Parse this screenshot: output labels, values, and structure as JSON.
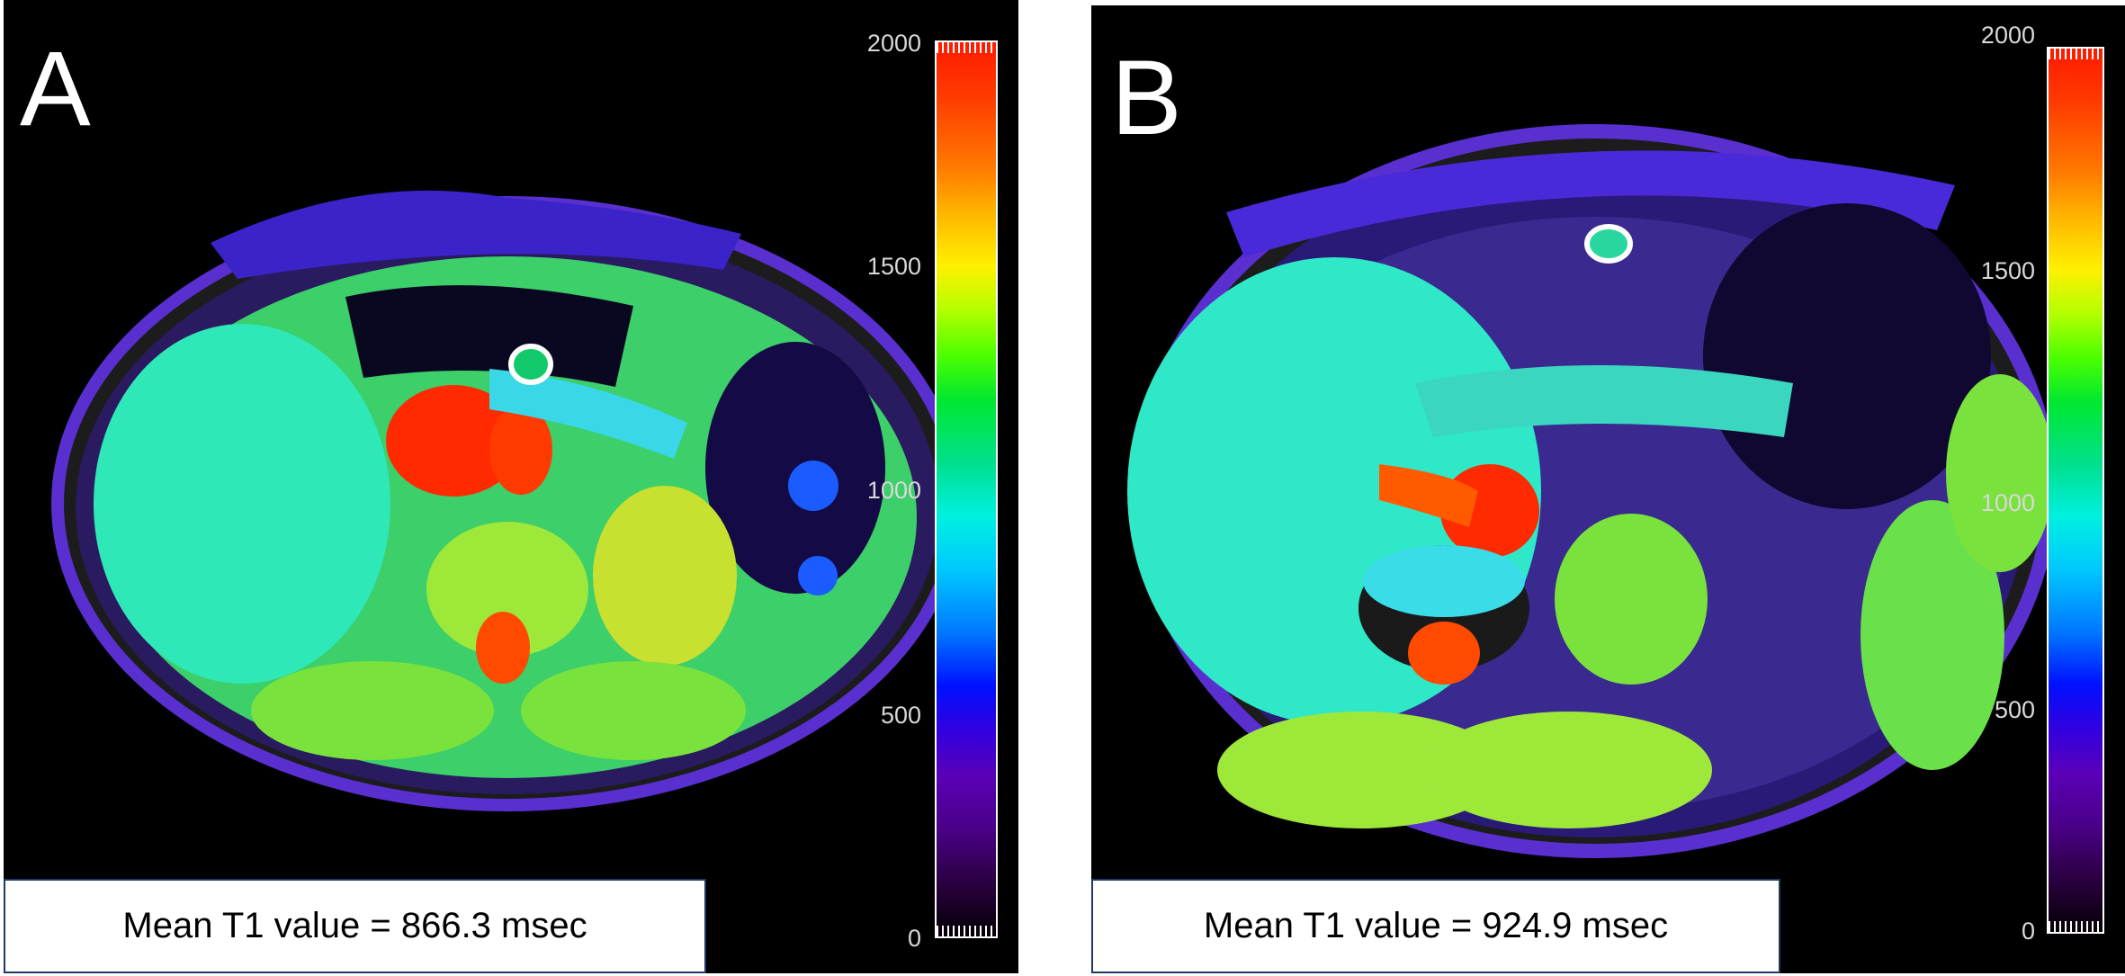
{
  "panels": [
    {
      "label": "A",
      "caption": "Mean T1 value = 866.3 msec",
      "colorbar": {
        "ticks": [
          "2000",
          "1500",
          "1000",
          "500",
          "0"
        ]
      }
    },
    {
      "label": "B",
      "caption": "Mean T1 value = 924.9 msec",
      "colorbar": {
        "ticks": [
          "2000",
          "1500",
          "1000",
          "500",
          "0"
        ]
      }
    }
  ],
  "colors": {
    "background": "#000000",
    "roi_marker": "#ffffff",
    "caption_border": "#1f3864"
  }
}
